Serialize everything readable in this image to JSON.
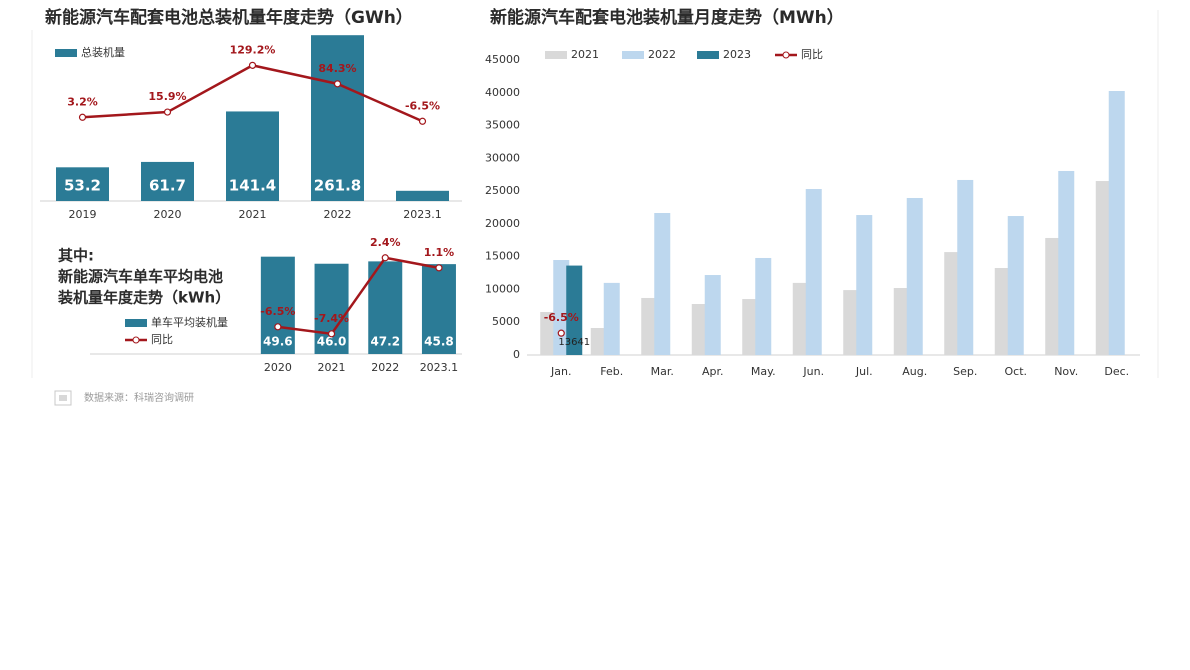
{
  "chart_data": [
    {
      "type": "bar",
      "title": "新能源汽车配套电池总装机量年度走势（GWh）",
      "categories": [
        "2019",
        "2020",
        "2021",
        "2022",
        "2023.1"
      ],
      "series": [
        {
          "name": "总装机量",
          "color": "#2b7b96",
          "values": [
            53.2,
            61.7,
            141.4,
            261.8,
            16.1
          ],
          "value_labels": [
            "53.2",
            "61.7",
            "141.4",
            "261.8",
            null
          ]
        },
        {
          "type": "line",
          "axis": "y2",
          "color": "#a3171c",
          "values": [
            3.2,
            15.9,
            129.2,
            84.3,
            -6.5
          ],
          "value_labels": [
            "3.2%",
            "15.9%",
            "129.2%",
            "84.3%",
            "-6.5%"
          ]
        }
      ],
      "ylim": [
        0,
        270
      ],
      "y2lim": [
        -200,
        215
      ],
      "legend": "upper left"
    },
    {
      "type": "bar",
      "title_lines": [
        "其中:",
        "新能源汽车单车平均电池",
        "装机量年度走势（kWh）"
      ],
      "categories": [
        "2020",
        "2021",
        "2022",
        "2023.1"
      ],
      "series": [
        {
          "name": "单车平均装机量",
          "color": "#2b7b96",
          "values": [
            49.6,
            46.0,
            47.2,
            45.8
          ],
          "value_labels": [
            "49.6",
            "46.0",
            "47.2",
            "45.8"
          ]
        },
        {
          "name": "同比",
          "type": "line",
          "axis": "y2",
          "color": "#a3171c",
          "values": [
            -6.5,
            -7.4,
            2.4,
            1.1
          ],
          "value_labels": [
            "-6.5%",
            "-7.4%",
            "2.4%",
            "1.1%"
          ]
        }
      ],
      "ylim": [
        0,
        53
      ],
      "y2lim": [
        -10,
        3.4
      ],
      "legend": "center left"
    },
    {
      "type": "bar",
      "title": "新能源汽车配套电池装机量月度走势（MWh）",
      "categories": [
        "Jan.",
        "Feb.",
        "Mar.",
        "Apr.",
        "May.",
        "Jun.",
        "Jul.",
        "Aug.",
        "Sep.",
        "Oct.",
        "Nov.",
        "Dec."
      ],
      "series": [
        {
          "name": "2021",
          "color": "#d9d9d9",
          "values": [
            6560,
            4120,
            8700,
            7780,
            8540,
            11000,
            9900,
            10220,
            15700,
            13270,
            17850,
            26540
          ]
        },
        {
          "name": "2022",
          "color": "#bdd7ee",
          "values": [
            14490,
            11000,
            21660,
            12200,
            14800,
            25320,
            21350,
            23950,
            26700,
            21200,
            28070,
            40270
          ]
        },
        {
          "name": "2023",
          "color": "#2b7b96",
          "values": [
            13641,
            null,
            null,
            null,
            null,
            null,
            null,
            null,
            null,
            null,
            null,
            null
          ],
          "value_labels": [
            "13641",
            null,
            null,
            null,
            null,
            null,
            null,
            null,
            null,
            null,
            null,
            null
          ]
        },
        {
          "name": "同比",
          "type": "line",
          "axis": "y2",
          "color": "#a3171c",
          "values": [
            -6.5,
            null,
            null,
            null,
            null,
            null,
            null,
            null,
            null,
            null,
            null,
            null
          ],
          "value_labels": [
            "-6.5%",
            null,
            null,
            null,
            null,
            null,
            null,
            null,
            null,
            null,
            null,
            null
          ]
        }
      ],
      "ylim": [
        0,
        45000
      ],
      "yticks": [
        0,
        5000,
        10000,
        15000,
        20000,
        25000,
        30000,
        35000,
        40000,
        45000
      ],
      "y2lim": [
        -8.5,
        18.5
      ],
      "legend": "upper center"
    }
  ],
  "source": "数据来源：科瑞咨询调研"
}
